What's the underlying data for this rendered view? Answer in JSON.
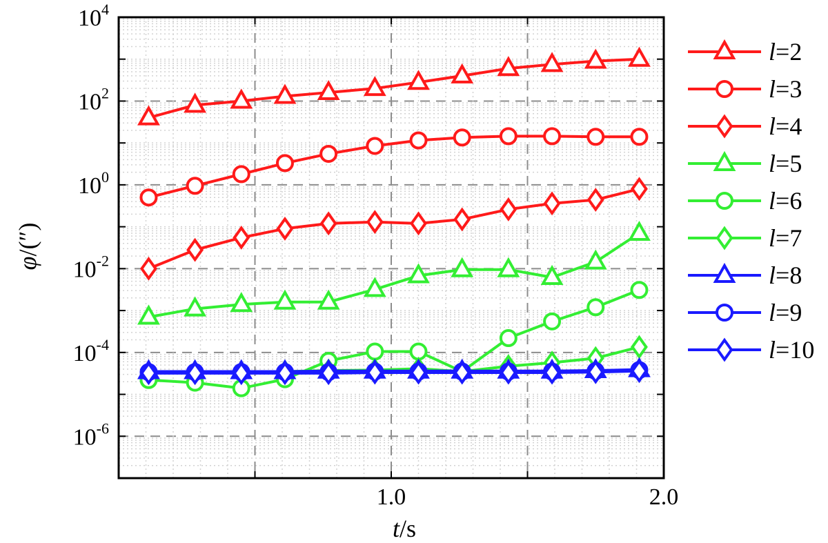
{
  "chart_data": {
    "type": "line",
    "xlabel": "t/s",
    "xlabel_var": "t",
    "xlabel_unit": "/s",
    "ylabel": "φ/(″)",
    "ylabel_var": "φ",
    "ylabel_unit": "/(″)",
    "xlim": [
      0.0,
      2.0
    ],
    "ylim_log10": [
      -7,
      4
    ],
    "y_scale": "log",
    "grid": true,
    "legend_position": "right",
    "x_ticks": [
      {
        "value": 1.0,
        "label": "1.0"
      },
      {
        "value": 2.0,
        "label": "2.0"
      }
    ],
    "y_ticks": [
      {
        "exp": 4,
        "base": "10",
        "sup": "4"
      },
      {
        "exp": 2,
        "base": "10",
        "sup": "2"
      },
      {
        "exp": 0,
        "base": "10",
        "sup": "0"
      },
      {
        "exp": -2,
        "base": "10",
        "sup": "-2"
      },
      {
        "exp": -4,
        "base": "10",
        "sup": "-4"
      },
      {
        "exp": -6,
        "base": "10",
        "sup": "-6"
      }
    ],
    "x": [
      0.11,
      0.28,
      0.45,
      0.61,
      0.77,
      0.94,
      1.1,
      1.26,
      1.43,
      1.59,
      1.75,
      1.91
    ],
    "colors": {
      "red": "#ff1a1a",
      "green": "#33ee33",
      "blue": "#1a1aff"
    },
    "series": [
      {
        "name": "l=2",
        "label_var": "l",
        "label_val": "=2",
        "color": "#ff1a1a",
        "marker": "triangle",
        "values": [
          40,
          80,
          100,
          130,
          160,
          200,
          280,
          400,
          600,
          750,
          900,
          1000
        ]
      },
      {
        "name": "l=3",
        "label_var": "l",
        "label_val": "=3",
        "color": "#ff1a1a",
        "marker": "circle",
        "values": [
          0.5,
          0.95,
          1.8,
          3.3,
          5.5,
          8.5,
          11.5,
          13.5,
          14.5,
          14.5,
          14.0,
          14.0
        ]
      },
      {
        "name": "l=4",
        "label_var": "l",
        "label_val": "=4",
        "color": "#ff1a1a",
        "marker": "diamond",
        "values": [
          0.01,
          0.028,
          0.055,
          0.09,
          0.12,
          0.13,
          0.12,
          0.15,
          0.26,
          0.36,
          0.44,
          0.8
        ]
      },
      {
        "name": "l=5",
        "label_var": "l",
        "label_val": "=5",
        "color": "#33ee33",
        "marker": "triangle",
        "values": [
          0.0007,
          0.0011,
          0.0014,
          0.0016,
          0.0016,
          0.0032,
          0.0068,
          0.0095,
          0.0095,
          0.0062,
          0.0145,
          0.07
        ]
      },
      {
        "name": "l=6",
        "label_var": "l",
        "label_val": "=6",
        "color": "#33ee33",
        "marker": "circle",
        "values": [
          2.2e-05,
          1.9e-05,
          1.4e-05,
          2.3e-05,
          6.3e-05,
          0.000105,
          0.000105,
          3.5e-05,
          0.00022,
          0.00055,
          0.0012,
          0.0031
        ]
      },
      {
        "name": "l=7",
        "label_var": "l",
        "label_val": "=7",
        "color": "#33ee33",
        "marker": "diamond",
        "values": [
          3.3e-05,
          3.4e-05,
          3.4e-05,
          3.5e-05,
          3.7e-05,
          3.8e-05,
          4.1e-05,
          3.5e-05,
          4.7e-05,
          5.7e-05,
          7.3e-05,
          0.000135
        ]
      },
      {
        "name": "l=8",
        "label_var": "l",
        "label_val": "=8",
        "color": "#1a1aff",
        "marker": "triangle",
        "values": [
          3.5e-05,
          3.5e-05,
          3.5e-05,
          3.5e-05,
          3.6e-05,
          3.6e-05,
          3.6e-05,
          3.6e-05,
          3.6e-05,
          3.6e-05,
          3.7e-05,
          3.9e-05
        ]
      },
      {
        "name": "l=9",
        "label_var": "l",
        "label_val": "=9",
        "color": "#1a1aff",
        "marker": "circle",
        "values": [
          3.4e-05,
          3.4e-05,
          3.4e-05,
          3.4e-05,
          3.4e-05,
          3.5e-05,
          3.5e-05,
          3.5e-05,
          3.5e-05,
          3.5e-05,
          3.6e-05,
          3.8e-05
        ]
      },
      {
        "name": "l=10",
        "label_var": "l",
        "label_val": "=10",
        "color": "#1a1aff",
        "marker": "diamond",
        "values": [
          3.2e-05,
          3.2e-05,
          3.2e-05,
          3.2e-05,
          3.2e-05,
          3.3e-05,
          3.3e-05,
          3.3e-05,
          3.3e-05,
          3.3e-05,
          3.4e-05,
          3.6e-05
        ]
      }
    ]
  }
}
